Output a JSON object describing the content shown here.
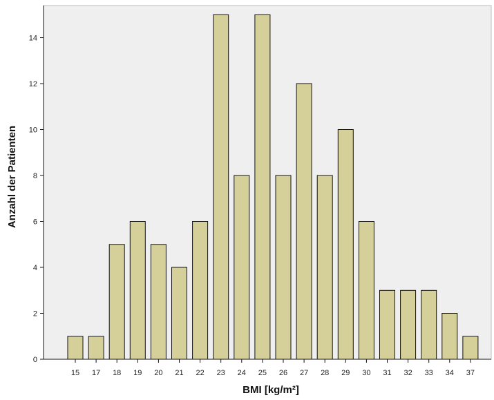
{
  "chart_data": {
    "type": "bar",
    "title": "",
    "xlabel": "BMI [kg/m²]",
    "ylabel": "Anzahl der Patienten",
    "categories": [
      "15",
      "17",
      "18",
      "19",
      "20",
      "21",
      "22",
      "23",
      "24",
      "25",
      "26",
      "27",
      "28",
      "29",
      "30",
      "31",
      "32",
      "33",
      "34",
      "37"
    ],
    "values": [
      1,
      1,
      5,
      6,
      5,
      4,
      6,
      15,
      8,
      15,
      8,
      12,
      8,
      10,
      6,
      3,
      3,
      3,
      2,
      1
    ],
    "ylim": [
      0,
      15.4
    ],
    "yticks": [
      0,
      2,
      4,
      6,
      8,
      10,
      12,
      14
    ],
    "grid": false,
    "legend": "none",
    "colors": {
      "bar_fill": "#d5d09a",
      "bar_stroke": "#111111",
      "plot_background": "#efefef",
      "axis": "#111111"
    }
  }
}
